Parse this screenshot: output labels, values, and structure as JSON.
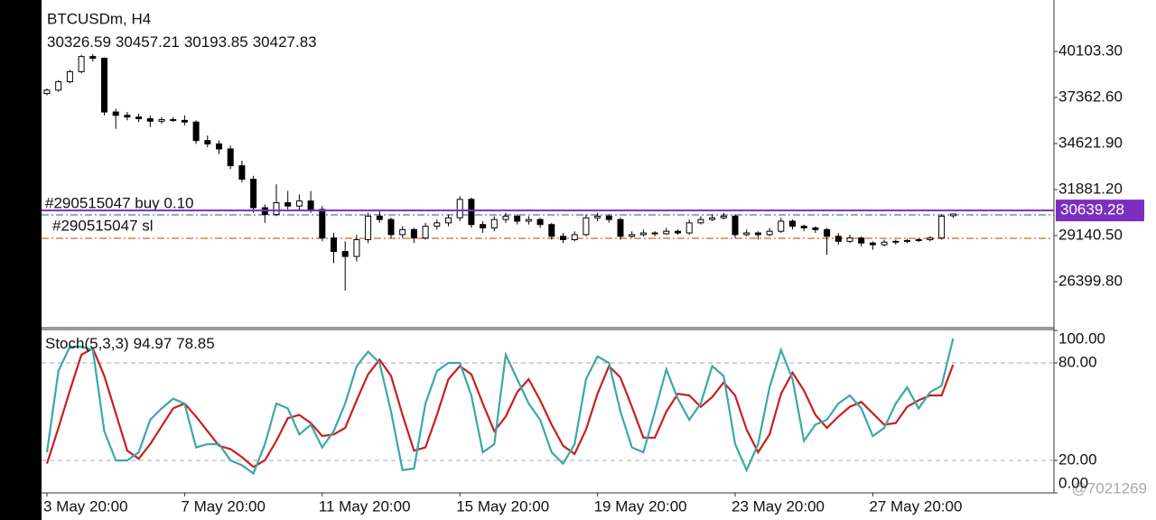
{
  "watermark": "@7021269",
  "chart_data": [
    {
      "type": "candlestick",
      "title": "BTCUSDm, H4",
      "color": "#000000",
      "up_color": "#ffffff",
      "open": [
        37600,
        37800,
        38300,
        38900,
        39800,
        39700,
        36500,
        36300,
        36200,
        36100,
        35950,
        36050,
        36000,
        35900,
        34800,
        34600,
        34300,
        33300,
        32500,
        30800,
        30400,
        31100,
        30900,
        31200,
        30700,
        29000,
        28200,
        27900,
        28900,
        30300,
        30100,
        29200,
        29500,
        29000,
        29700,
        29900,
        30200,
        31300,
        29800,
        29600,
        30100,
        30300,
        30000,
        30100,
        29800,
        29100,
        28900,
        29200,
        30200,
        30300,
        30100,
        29100,
        29200,
        29300,
        29250,
        29400,
        29300,
        29900,
        30100,
        30200,
        30300,
        29200,
        29300,
        29200,
        29400,
        30000,
        29700,
        29600,
        29500,
        29100,
        28800,
        29000,
        28700,
        28600,
        28750,
        28800,
        28850,
        28900,
        29000,
        30326.59
      ],
      "high": [
        37900,
        38400,
        39000,
        39900,
        39950,
        39750,
        36700,
        36500,
        36400,
        36300,
        36200,
        36200,
        36300,
        36000,
        35100,
        34800,
        34500,
        33600,
        32700,
        31000,
        32200,
        31800,
        31600,
        31800,
        30900,
        29300,
        28800,
        29200,
        30500,
        30600,
        30200,
        29700,
        29600,
        29900,
        30100,
        30400,
        31500,
        31400,
        30000,
        30300,
        30500,
        30400,
        30300,
        30200,
        29900,
        29300,
        29400,
        30400,
        30500,
        30400,
        30200,
        29400,
        29500,
        29400,
        29600,
        29500,
        30100,
        30300,
        30400,
        30500,
        30400,
        29500,
        29400,
        29600,
        30200,
        30100,
        29800,
        29700,
        29600,
        29300,
        29200,
        29100,
        28800,
        28900,
        28900,
        28950,
        29000,
        29100,
        30400,
        30457.21
      ],
      "low": [
        37500,
        37700,
        38200,
        38800,
        39500,
        36300,
        35500,
        36000,
        35900,
        35600,
        35800,
        35900,
        35700,
        34600,
        34400,
        34000,
        33100,
        32300,
        30500,
        29900,
        30300,
        30700,
        30600,
        30500,
        28800,
        27500,
        25860,
        27600,
        28700,
        29900,
        29000,
        29000,
        28700,
        28900,
        29500,
        29700,
        30000,
        29600,
        29300,
        29400,
        29900,
        29800,
        29800,
        29600,
        28900,
        28700,
        28800,
        29100,
        30000,
        29900,
        28900,
        29000,
        29100,
        29100,
        29200,
        29200,
        29200,
        29800,
        30000,
        30100,
        29000,
        29100,
        28900,
        29100,
        29300,
        29500,
        29400,
        29300,
        28000,
        28600,
        28700,
        28500,
        28300,
        28500,
        28600,
        28700,
        28750,
        28800,
        28900,
        30193.85
      ],
      "close": [
        37800,
        38300,
        38900,
        39800,
        39700,
        36500,
        36300,
        36200,
        36100,
        35950,
        36050,
        36000,
        35900,
        34800,
        34600,
        34300,
        33300,
        32500,
        30800,
        30400,
        31100,
        30900,
        31200,
        30700,
        29000,
        28200,
        27900,
        28900,
        30300,
        30100,
        29200,
        29500,
        29000,
        29700,
        29900,
        30200,
        31300,
        29800,
        29600,
        30100,
        30300,
        30000,
        30100,
        29800,
        29100,
        28900,
        29200,
        30200,
        30300,
        30100,
        29100,
        29200,
        29300,
        29250,
        29400,
        29300,
        29900,
        30100,
        30200,
        30300,
        29200,
        29300,
        29200,
        29400,
        30000,
        29700,
        29600,
        29500,
        29100,
        28800,
        29000,
        28700,
        28600,
        28750,
        28800,
        28850,
        28900,
        29000,
        30300,
        30427.83
      ],
      "ylim": [
        23713,
        43166
      ],
      "yticks": [
        {
          "value": 40103.3,
          "label": "40103.30"
        },
        {
          "value": 37362.6,
          "label": "37362.60"
        },
        {
          "value": 34621.9,
          "label": "34621.90"
        },
        {
          "value": 31881.2,
          "label": "31881.20"
        },
        {
          "value": 29140.5,
          "label": "29140.50"
        },
        {
          "value": 26399.8,
          "label": "26399.80"
        }
      ],
      "price_line": {
        "value": 30639.28,
        "color": "#7b2fc0"
      },
      "orders": [
        {
          "label": "#290515047 buy 0.10",
          "value": 30376,
          "color": "#2e8b8b"
        },
        {
          "label": "#290515047 sl",
          "value": 28980,
          "color": "#d2691e"
        }
      ]
    },
    {
      "type": "line",
      "title": "Stoch(5,3,3)",
      "categories": [
        "3 May 20:00",
        null,
        null,
        null,
        null,
        null,
        null,
        null,
        null,
        null,
        null,
        null,
        "7 May 20:00",
        null,
        null,
        null,
        null,
        null,
        null,
        null,
        null,
        null,
        null,
        null,
        "11 May 20:00",
        null,
        null,
        null,
        null,
        null,
        null,
        null,
        null,
        null,
        null,
        null,
        "15 May 20:00",
        null,
        null,
        null,
        null,
        null,
        null,
        null,
        null,
        null,
        null,
        null,
        "19 May 20:00",
        null,
        null,
        null,
        null,
        null,
        null,
        null,
        null,
        null,
        null,
        null,
        "23 May 20:00",
        null,
        null,
        null,
        null,
        null,
        null,
        null,
        null,
        null,
        null,
        null,
        "27 May 20:00",
        null,
        null,
        null,
        null,
        null,
        null,
        null
      ],
      "ylim": [
        0,
        100
      ],
      "yticks": [
        {
          "value": 100,
          "label": "100.00"
        },
        {
          "value": 80,
          "label": "80.00"
        },
        {
          "value": 20,
          "label": "20.00"
        },
        {
          "value": 0,
          "label": "0.00"
        }
      ],
      "levels": [
        80,
        20
      ],
      "series": [
        {
          "color": "#3aa8a8",
          "values": [
            25,
            75,
            90,
            90,
            88,
            38,
            20,
            20,
            25,
            45,
            52,
            58,
            55,
            28,
            30,
            30,
            20,
            17,
            12,
            30,
            55,
            52,
            36,
            42,
            28,
            38,
            55,
            78,
            87,
            80,
            50,
            14,
            15,
            55,
            75,
            80,
            80,
            60,
            25,
            30,
            85,
            70,
            55,
            45,
            25,
            18,
            30,
            70,
            84,
            80,
            50,
            28,
            25,
            50,
            76,
            58,
            45,
            55,
            78,
            72,
            30,
            14,
            30,
            65,
            88,
            70,
            32,
            42,
            45,
            55,
            60,
            52,
            35,
            40,
            55,
            65,
            52,
            62,
            66,
            94.97
          ]
        },
        {
          "color": "#c8201e",
          "values": [
            18,
            40,
            63,
            85,
            89,
            72,
            49,
            26,
            21,
            30,
            41,
            52,
            55,
            47,
            38,
            29,
            27,
            22,
            16,
            20,
            32,
            46,
            48,
            43,
            35,
            36,
            40,
            57,
            73,
            82,
            72,
            48,
            26,
            28,
            48,
            70,
            78,
            73,
            55,
            38,
            47,
            62,
            70,
            57,
            42,
            29,
            24,
            39,
            61,
            78,
            71,
            53,
            34,
            34,
            50,
            61,
            60,
            53,
            59,
            68,
            60,
            39,
            25,
            36,
            61,
            74,
            63,
            48,
            40,
            47,
            53,
            56,
            49,
            42,
            43,
            53,
            57,
            60,
            60,
            78.85
          ]
        }
      ]
    }
  ]
}
